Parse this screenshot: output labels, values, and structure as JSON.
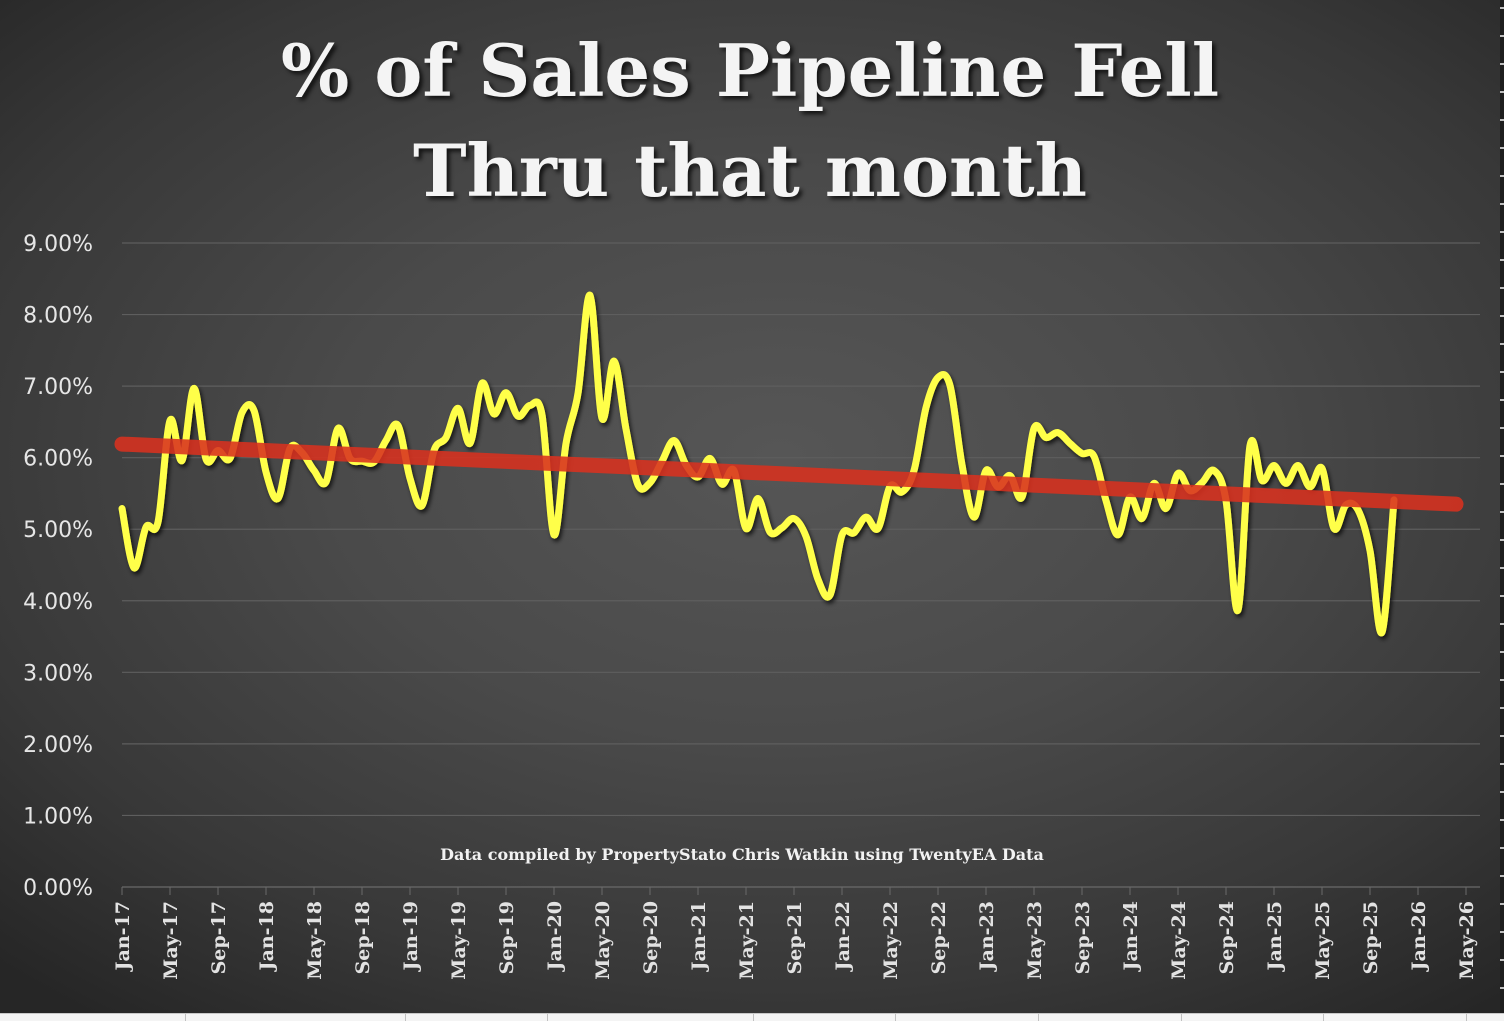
{
  "chart_data": {
    "type": "line",
    "title": "% of Sales Pipeline Fell Thru that month",
    "title_lines": [
      "% of Sales Pipeline Fell",
      "Thru that month"
    ],
    "xlabel": "",
    "ylabel": "",
    "annotation": "Data compiled by PropertyStato Chris Watkin using TwentyEA Data",
    "ylim": [
      0,
      9
    ],
    "y_ticks": [
      0,
      1,
      2,
      3,
      4,
      5,
      6,
      7,
      8,
      9
    ],
    "y_tick_labels": [
      "0.00%",
      "1.00%",
      "2.00%",
      "3.00%",
      "4.00%",
      "5.00%",
      "6.00%",
      "7.00%",
      "8.00%",
      "9.00%"
    ],
    "x_start": "Jan-17",
    "x_range_months": [
      0,
      112
    ],
    "x_tick_labels": [
      "Jan-17",
      "May-17",
      "Sep-17",
      "Jan-18",
      "May-18",
      "Sep-18",
      "Jan-19",
      "May-19",
      "Sep-19",
      "Jan-20",
      "May-20",
      "Sep-20",
      "Jan-21",
      "May-21",
      "Sep-21",
      "Jan-22",
      "May-22",
      "Sep-22",
      "Jan-23",
      "May-23",
      "Sep-23",
      "Jan-24",
      "May-24",
      "Sep-24",
      "Jan-25",
      "May-25",
      "Sep-25",
      "Jan-26",
      "May-26"
    ],
    "grid": true,
    "series": [
      {
        "name": "% of sales pipeline fell through",
        "color": "#ffff4a",
        "unit": "%",
        "values": [
          5.29,
          4.46,
          5.03,
          5.1,
          6.52,
          5.96,
          6.97,
          5.98,
          6.1,
          5.99,
          6.63,
          6.66,
          5.8,
          5.43,
          6.13,
          6.07,
          5.82,
          5.66,
          6.41,
          5.99,
          5.95,
          5.94,
          6.24,
          6.45,
          5.71,
          5.33,
          6.1,
          6.28,
          6.69,
          6.2,
          7.04,
          6.61,
          6.91,
          6.58,
          6.73,
          6.6,
          4.92,
          6.2,
          6.9,
          8.27,
          6.55,
          7.35,
          6.4,
          5.62,
          5.65,
          5.95,
          6.24,
          5.9,
          5.73,
          5.99,
          5.63,
          5.82,
          5.01,
          5.43,
          4.96,
          5.02,
          5.15,
          4.9,
          4.3,
          4.08,
          4.92,
          4.95,
          5.17,
          5.01,
          5.6,
          5.52,
          5.82,
          6.7,
          7.12,
          7.01,
          5.9,
          5.17,
          5.82,
          5.59,
          5.75,
          5.45,
          6.41,
          6.28,
          6.35,
          6.2,
          6.06,
          6.02,
          5.4,
          4.92,
          5.45,
          5.15,
          5.64,
          5.29,
          5.78,
          5.54,
          5.65,
          5.82,
          5.4,
          3.87,
          6.17,
          5.68,
          5.89,
          5.64,
          5.89,
          5.59,
          5.85,
          5.01,
          5.34,
          5.27,
          4.7,
          3.56,
          5.41
        ]
      },
      {
        "name": "Linear trend",
        "color": "#d8311f",
        "unit": "%",
        "type": "trendline",
        "x_months": [
          0,
          110
        ],
        "values": [
          6.19,
          5.35
        ]
      }
    ]
  }
}
